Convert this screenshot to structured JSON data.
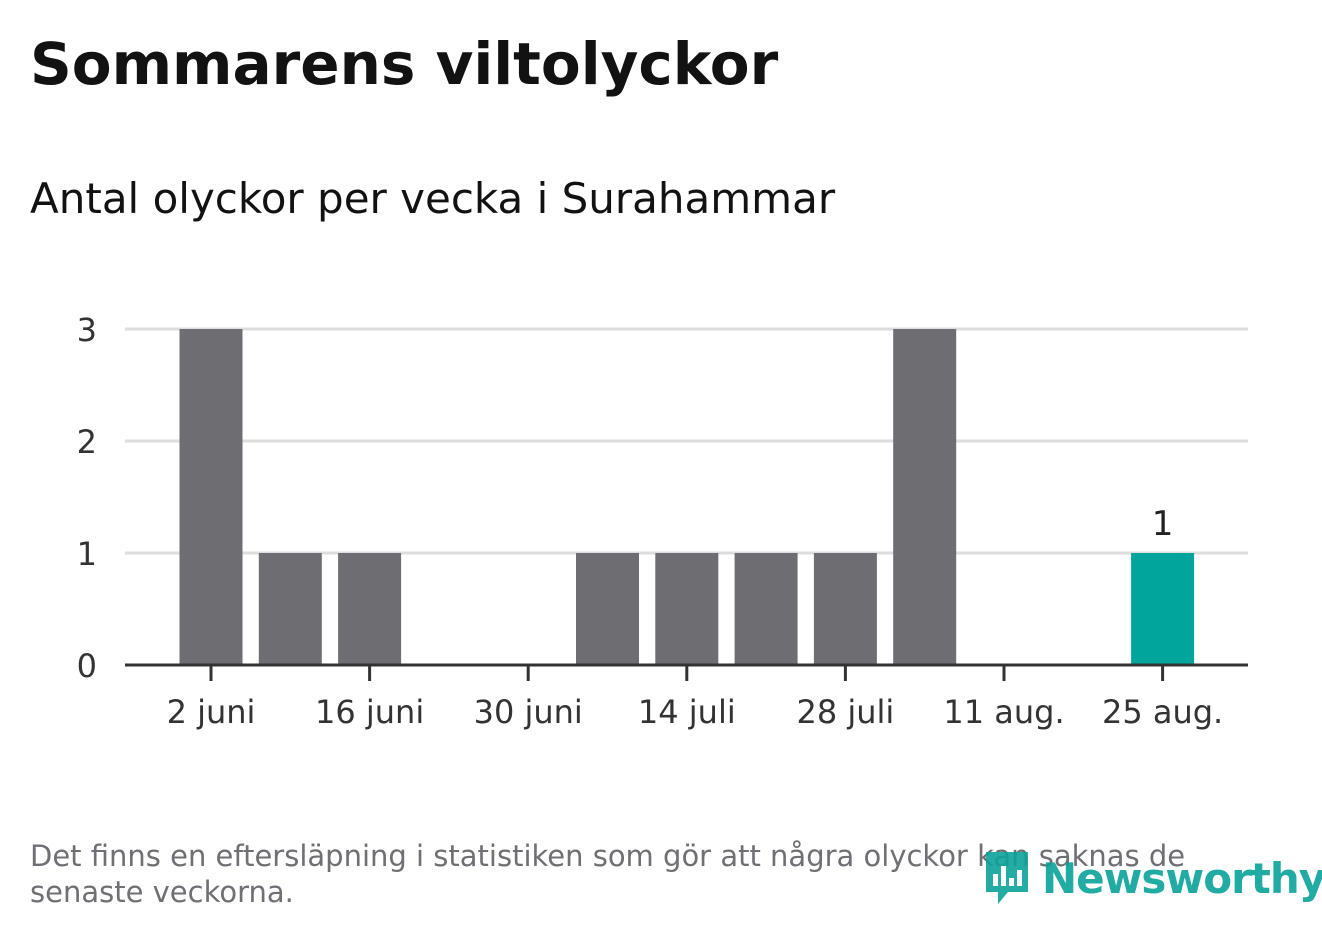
{
  "title": "Sommarens viltolyckor",
  "subtitle": "Antal olyckor per vecka i Surahammar",
  "note": "Det finns en eftersläpning i statistiken som gör att några olyckor kan saknas de senaste veckorna.",
  "logo": {
    "text": "Newsworthy",
    "icon": "newsworthy-bar-icon"
  },
  "colors": {
    "bar": "#6e6d72",
    "highlight": "#02a59c",
    "grid": "#dddddd",
    "axis": "#333333"
  },
  "chart_data": {
    "type": "bar",
    "x": [
      "2 juni",
      "9 juni",
      "16 juni",
      "23 juni",
      "30 juni",
      "7 juli",
      "14 juli",
      "21 juli",
      "28 juli",
      "4 aug.",
      "11 aug.",
      "18 aug.",
      "25 aug."
    ],
    "values": [
      3,
      1,
      1,
      0,
      0,
      1,
      1,
      1,
      1,
      3,
      0,
      0,
      1
    ],
    "x_tick_labels": [
      "2 juni",
      "16 juni",
      "30 juni",
      "14 juli",
      "28 juli",
      "11 aug.",
      "25 aug."
    ],
    "y_ticks": [
      0,
      1,
      2,
      3
    ],
    "ylim": [
      0,
      3
    ],
    "highlight_index": 12,
    "data_labels": [
      {
        "index": 12,
        "text": "1"
      }
    ],
    "grid": true,
    "xlabel": "",
    "ylabel": ""
  }
}
